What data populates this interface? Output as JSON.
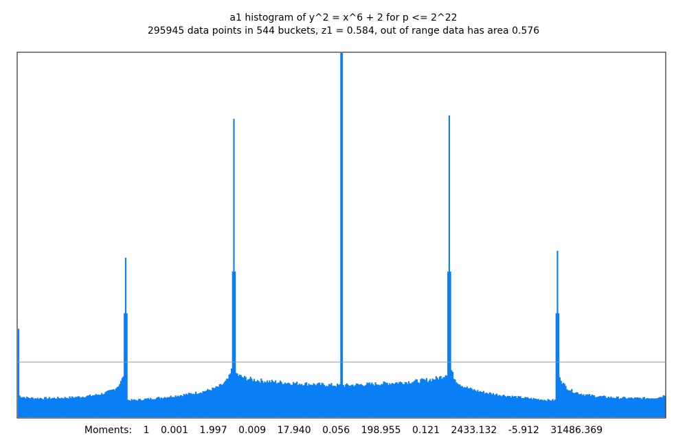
{
  "chart_data": {
    "type": "bar",
    "title": "a1 histogram of y^2 = x^6 + 2 for p <= 2^22",
    "subtitle": "295945 data points in 544 buckets, z1 = 0.584, out of range data has area 0.576",
    "x_range": [
      -3,
      3
    ],
    "y_reference_value": 0.159,
    "bucket_count": 544,
    "description_of_shape": "symmetric histogram with spikes at -2, -1, 0, 1, 2 and singular growth at the edges",
    "peaks": [
      {
        "x": -3.0,
        "height": 0.255
      },
      {
        "x": -2.0,
        "height": 0.46
      },
      {
        "x": -1.0,
        "height": 0.86
      },
      {
        "x": 0.0,
        "height": 1.05
      },
      {
        "x": 1.0,
        "height": 0.87
      },
      {
        "x": 2.0,
        "height": 0.48
      },
      {
        "x": 3.0,
        "height": 0.255
      }
    ],
    "bar_color": "#0a7ff5",
    "reference_line_color": "#999999",
    "moments_label": "Moments:",
    "moments": [
      "1",
      "0.001",
      "1.997",
      "0.009",
      "17.940",
      "0.056",
      "198.955",
      "0.121",
      "2433.132",
      "-5.912",
      "31486.369"
    ]
  }
}
